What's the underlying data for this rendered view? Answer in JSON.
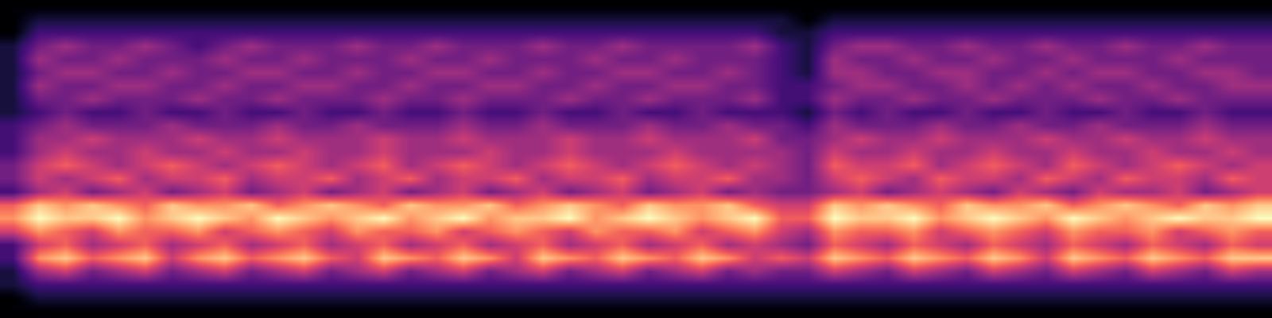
{
  "chart_data": {
    "type": "heatmap",
    "tick_labels": false,
    "cells": [
      [
        0,
        0,
        0,
        0,
        0,
        0,
        0,
        0,
        0,
        0,
        0,
        0,
        0,
        0,
        0,
        0,
        0,
        0,
        0,
        0,
        0,
        0,
        0,
        0,
        0,
        0,
        0,
        0,
        0,
        0,
        0,
        0,
        0,
        0,
        0,
        0,
        0,
        0,
        0,
        0,
        0,
        0,
        0,
        0,
        0,
        0,
        0,
        0
      ],
      [
        0,
        1,
        1,
        1,
        1,
        1,
        1,
        1,
        1,
        1,
        1,
        1,
        1,
        1,
        1,
        1,
        1,
        1,
        1,
        1,
        1,
        1,
        1,
        1,
        1,
        1,
        1,
        1,
        1,
        1,
        0,
        1,
        1,
        1,
        1,
        1,
        1,
        1,
        1,
        1,
        1,
        1,
        1,
        1,
        1,
        1,
        1,
        1
      ],
      [
        0,
        2,
        2,
        2,
        2,
        2,
        2,
        2,
        2,
        2,
        2,
        2,
        2,
        2,
        2,
        2,
        2,
        2,
        2,
        2,
        2,
        2,
        2,
        2,
        2,
        2,
        2,
        2,
        2,
        1,
        1,
        2,
        2,
        2,
        2,
        2,
        2,
        2,
        2,
        2,
        2,
        2,
        2,
        2,
        2,
        2,
        2,
        2
      ],
      [
        1,
        3,
        4,
        3,
        3,
        4,
        3,
        2,
        3,
        4,
        3,
        3,
        3,
        4,
        3,
        3,
        4,
        3,
        3,
        3,
        4,
        3,
        3,
        4,
        3,
        3,
        3,
        3,
        4,
        2,
        1,
        3,
        4,
        4,
        3,
        3,
        4,
        3,
        3,
        4,
        3,
        3,
        4,
        3,
        3,
        4,
        3,
        3
      ],
      [
        1,
        4,
        3,
        3,
        4,
        3,
        3,
        3,
        4,
        3,
        3,
        4,
        3,
        3,
        3,
        4,
        3,
        3,
        4,
        3,
        3,
        3,
        4,
        3,
        3,
        4,
        3,
        3,
        3,
        2,
        1,
        4,
        3,
        3,
        4,
        3,
        3,
        4,
        3,
        3,
        4,
        3,
        3,
        3,
        4,
        3,
        3,
        3
      ],
      [
        1,
        3,
        4,
        4,
        3,
        3,
        4,
        3,
        3,
        4,
        4,
        3,
        3,
        4,
        3,
        3,
        4,
        4,
        3,
        3,
        4,
        3,
        3,
        4,
        4,
        3,
        3,
        4,
        3,
        2,
        1,
        4,
        4,
        3,
        3,
        4,
        4,
        3,
        3,
        4,
        3,
        4,
        4,
        3,
        3,
        4,
        4,
        3
      ],
      [
        1,
        4,
        3,
        3,
        4,
        4,
        3,
        3,
        4,
        3,
        3,
        4,
        4,
        3,
        3,
        4,
        3,
        3,
        4,
        4,
        3,
        3,
        4,
        3,
        3,
        4,
        4,
        3,
        3,
        2,
        2,
        3,
        4,
        4,
        3,
        3,
        4,
        3,
        4,
        3,
        4,
        3,
        3,
        4,
        3,
        3,
        4,
        4
      ],
      [
        1,
        3,
        3,
        4,
        3,
        3,
        3,
        4,
        3,
        3,
        4,
        3,
        3,
        3,
        4,
        3,
        3,
        4,
        3,
        3,
        3,
        4,
        3,
        3,
        4,
        3,
        3,
        3,
        4,
        2,
        2,
        4,
        3,
        3,
        4,
        3,
        3,
        4,
        3,
        3,
        3,
        4,
        3,
        3,
        4,
        3,
        3,
        3
      ],
      [
        1,
        2,
        3,
        2,
        2,
        3,
        2,
        2,
        3,
        2,
        2,
        3,
        2,
        2,
        3,
        2,
        2,
        3,
        2,
        2,
        3,
        2,
        2,
        3,
        2,
        2,
        3,
        2,
        2,
        2,
        1,
        3,
        2,
        3,
        2,
        2,
        3,
        2,
        2,
        3,
        2,
        2,
        3,
        2,
        2,
        3,
        2,
        2
      ],
      [
        2,
        3,
        4,
        3,
        3,
        3,
        4,
        3,
        3,
        3,
        4,
        3,
        3,
        4,
        3,
        3,
        3,
        4,
        3,
        3,
        4,
        3,
        3,
        3,
        4,
        3,
        3,
        4,
        3,
        3,
        2,
        4,
        3,
        3,
        3,
        4,
        3,
        3,
        4,
        3,
        3,
        4,
        3,
        3,
        3,
        4,
        3,
        3
      ],
      [
        2,
        4,
        4,
        5,
        4,
        4,
        4,
        5,
        4,
        4,
        5,
        4,
        4,
        4,
        5,
        4,
        4,
        5,
        4,
        4,
        4,
        5,
        4,
        4,
        5,
        4,
        4,
        4,
        5,
        3,
        3,
        4,
        5,
        4,
        4,
        5,
        4,
        4,
        4,
        5,
        4,
        4,
        5,
        4,
        4,
        5,
        4,
        4
      ],
      [
        2,
        4,
        5,
        4,
        4,
        5,
        4,
        4,
        5,
        4,
        4,
        5,
        4,
        4,
        5,
        4,
        4,
        4,
        5,
        4,
        4,
        5,
        4,
        4,
        4,
        5,
        4,
        4,
        4,
        4,
        3,
        5,
        4,
        4,
        5,
        4,
        4,
        5,
        4,
        4,
        5,
        4,
        4,
        5,
        4,
        4,
        5,
        4
      ],
      [
        3,
        5,
        6,
        5,
        4,
        5,
        6,
        5,
        4,
        5,
        6,
        5,
        4,
        5,
        6,
        4,
        5,
        6,
        5,
        4,
        5,
        6,
        5,
        4,
        5,
        6,
        5,
        4,
        5,
        4,
        3,
        6,
        5,
        5,
        6,
        4,
        5,
        6,
        5,
        4,
        6,
        5,
        4,
        5,
        6,
        5,
        4,
        5
      ],
      [
        3,
        5,
        4,
        5,
        6,
        4,
        5,
        5,
        6,
        4,
        5,
        5,
        6,
        4,
        5,
        6,
        4,
        5,
        5,
        6,
        4,
        5,
        5,
        6,
        4,
        5,
        5,
        6,
        4,
        4,
        3,
        5,
        6,
        5,
        4,
        6,
        5,
        5,
        4,
        6,
        5,
        4,
        6,
        5,
        5,
        4,
        6,
        5
      ],
      [
        2,
        4,
        5,
        3,
        4,
        5,
        3,
        4,
        5,
        3,
        4,
        5,
        3,
        4,
        5,
        3,
        4,
        5,
        3,
        4,
        5,
        3,
        4,
        5,
        3,
        4,
        5,
        3,
        4,
        3,
        3,
        4,
        5,
        3,
        4,
        5,
        4,
        3,
        5,
        4,
        3,
        5,
        4,
        4,
        5,
        3,
        4,
        5
      ],
      [
        6,
        8,
        7,
        8,
        7,
        6,
        8,
        7,
        7,
        8,
        6,
        7,
        8,
        7,
        6,
        8,
        7,
        7,
        8,
        6,
        7,
        8,
        7,
        6,
        8,
        7,
        7,
        8,
        6,
        5,
        5,
        8,
        7,
        8,
        7,
        6,
        8,
        7,
        7,
        8,
        6,
        7,
        8,
        7,
        6,
        8,
        7,
        8
      ],
      [
        7,
        9,
        8,
        8,
        9,
        7,
        8,
        9,
        8,
        7,
        9,
        8,
        7,
        8,
        9,
        7,
        8,
        9,
        7,
        8,
        8,
        9,
        7,
        8,
        9,
        8,
        7,
        8,
        9,
        6,
        6,
        9,
        8,
        8,
        9,
        7,
        8,
        9,
        8,
        7,
        9,
        8,
        7,
        8,
        9,
        8,
        8,
        9
      ],
      [
        5,
        7,
        6,
        5,
        7,
        6,
        6,
        7,
        5,
        6,
        7,
        6,
        5,
        7,
        6,
        6,
        7,
        5,
        6,
        7,
        6,
        5,
        7,
        6,
        6,
        7,
        5,
        6,
        7,
        5,
        4,
        7,
        6,
        6,
        7,
        5,
        6,
        7,
        6,
        5,
        7,
        6,
        6,
        7,
        5,
        6,
        7,
        6
      ],
      [
        2,
        5,
        6,
        4,
        5,
        6,
        4,
        5,
        6,
        4,
        5,
        6,
        4,
        5,
        6,
        4,
        5,
        6,
        4,
        5,
        6,
        4,
        5,
        6,
        4,
        5,
        6,
        4,
        5,
        4,
        3,
        6,
        5,
        4,
        6,
        5,
        4,
        6,
        5,
        4,
        6,
        5,
        4,
        6,
        5,
        4,
        6,
        5
      ],
      [
        2,
        7,
        8,
        6,
        7,
        8,
        5,
        7,
        8,
        6,
        7,
        8,
        6,
        5,
        8,
        7,
        6,
        8,
        7,
        5,
        8,
        7,
        6,
        8,
        7,
        6,
        8,
        7,
        5,
        6,
        5,
        8,
        7,
        6,
        8,
        7,
        6,
        8,
        7,
        5,
        8,
        7,
        6,
        8,
        7,
        6,
        8,
        8
      ],
      [
        1,
        4,
        5,
        3,
        4,
        5,
        3,
        4,
        5,
        3,
        4,
        5,
        3,
        4,
        5,
        3,
        4,
        5,
        3,
        4,
        5,
        3,
        4,
        5,
        3,
        4,
        5,
        3,
        4,
        3,
        3,
        5,
        4,
        3,
        5,
        4,
        3,
        5,
        4,
        3,
        5,
        4,
        3,
        5,
        4,
        3,
        5,
        4
      ],
      [
        1,
        2,
        2,
        2,
        2,
        2,
        2,
        2,
        2,
        2,
        2,
        2,
        2,
        2,
        2,
        2,
        2,
        2,
        2,
        2,
        2,
        2,
        2,
        2,
        2,
        2,
        2,
        2,
        2,
        2,
        2,
        2,
        2,
        2,
        2,
        2,
        2,
        2,
        2,
        2,
        2,
        2,
        2,
        2,
        2,
        2,
        2,
        2
      ],
      [
        0,
        1,
        1,
        1,
        1,
        1,
        1,
        1,
        1,
        1,
        1,
        1,
        1,
        1,
        1,
        1,
        1,
        1,
        1,
        1,
        1,
        1,
        1,
        1,
        1,
        1,
        1,
        1,
        1,
        1,
        1,
        1,
        1,
        1,
        1,
        1,
        1,
        1,
        1,
        1,
        1,
        1,
        1,
        1,
        1,
        1,
        1,
        1
      ],
      [
        0,
        0,
        0,
        0,
        0,
        0,
        0,
        0,
        0,
        0,
        0,
        0,
        0,
        0,
        0,
        0,
        0,
        0,
        0,
        0,
        0,
        0,
        0,
        0,
        0,
        0,
        0,
        0,
        0,
        0,
        0,
        0,
        0,
        0,
        0,
        0,
        0,
        0,
        0,
        0,
        0,
        0,
        0,
        0,
        0,
        0,
        0,
        0
      ]
    ]
  }
}
